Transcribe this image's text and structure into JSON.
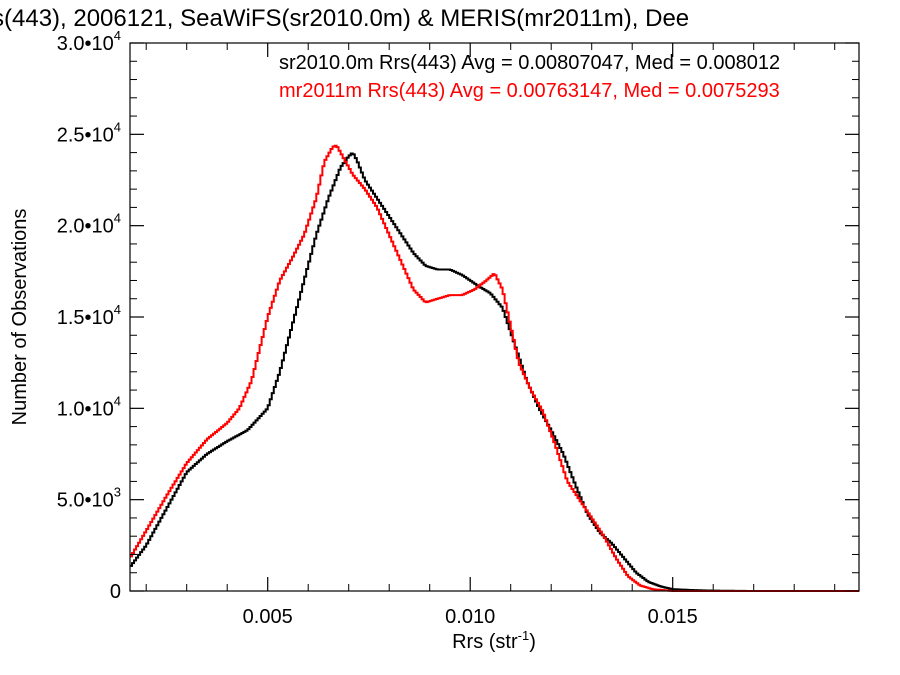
{
  "chart_data": {
    "type": "line",
    "title": "s(443), 2006121, SeaWiFS(sr2010.0m) & MERIS(mr2011m), Dee",
    "xlabel_main": "Rrs (str",
    "xlabel_sup": "-1",
    "xlabel_close": ")",
    "ylabel": "Number of Observations",
    "xlim": [
      0.0016,
      0.0196
    ],
    "ylim": [
      0,
      30000
    ],
    "grid": false,
    "legend_placement": "top-right",
    "x_ticks": [
      {
        "value": 0.005,
        "label": "0.005"
      },
      {
        "value": 0.01,
        "label": "0.010"
      },
      {
        "value": 0.015,
        "label": "0.015"
      }
    ],
    "y_ticks": [
      {
        "value": 0,
        "mant": "0",
        "exp": ""
      },
      {
        "value": 5000,
        "mant": "5.0•10",
        "exp": "3"
      },
      {
        "value": 10000,
        "mant": "1.0•10",
        "exp": "4"
      },
      {
        "value": 15000,
        "mant": "1.5•10",
        "exp": "4"
      },
      {
        "value": 20000,
        "mant": "2.0•10",
        "exp": "4"
      },
      {
        "value": 25000,
        "mant": "2.5•10",
        "exp": "4"
      },
      {
        "value": 30000,
        "mant": "3.0•10",
        "exp": "4"
      }
    ],
    "series": [
      {
        "label": "sr2010.0m Rrs(443) Avg = 0.00807047, Med = 0.008012",
        "color": "#000000",
        "x": [
          0.0016,
          0.002,
          0.0025,
          0.003,
          0.0035,
          0.004,
          0.0045,
          0.005,
          0.0053,
          0.0056,
          0.0059,
          0.0062,
          0.0065,
          0.0068,
          0.007,
          0.0071,
          0.0072,
          0.0074,
          0.0077,
          0.008,
          0.0083,
          0.0086,
          0.0089,
          0.0092,
          0.0095,
          0.0098,
          0.01,
          0.0102,
          0.0105,
          0.0108,
          0.0111,
          0.0114,
          0.0117,
          0.012,
          0.0123,
          0.0126,
          0.0129,
          0.0132,
          0.0135,
          0.0138,
          0.0141,
          0.0144,
          0.0147,
          0.015,
          0.0155,
          0.016,
          0.017,
          0.0196
        ],
        "y": [
          1300,
          2500,
          4500,
          6500,
          7500,
          8200,
          8800,
          10000,
          12000,
          14500,
          17000,
          19500,
          21500,
          23200,
          23800,
          24000,
          23600,
          22500,
          21500,
          20500,
          19500,
          18500,
          17800,
          17600,
          17600,
          17300,
          17000,
          16700,
          16300,
          15500,
          13500,
          11500,
          10000,
          8800,
          7500,
          5800,
          4200,
          3200,
          2600,
          1800,
          1000,
          500,
          250,
          100,
          50,
          20,
          0,
          0
        ]
      },
      {
        "label": "mr2011m Rrs(443) Avg = 0.00763147, Med = 0.0075293",
        "color": "#ff0000",
        "x": [
          0.0016,
          0.002,
          0.0025,
          0.003,
          0.0035,
          0.004,
          0.0043,
          0.0046,
          0.005,
          0.0053,
          0.0056,
          0.0059,
          0.0062,
          0.0064,
          0.0066,
          0.0067,
          0.0068,
          0.0069,
          0.0071,
          0.0074,
          0.0077,
          0.008,
          0.0083,
          0.0086,
          0.0089,
          0.0092,
          0.0095,
          0.0098,
          0.0101,
          0.0104,
          0.0106,
          0.0108,
          0.011,
          0.0112,
          0.0115,
          0.0118,
          0.0121,
          0.0124,
          0.0127,
          0.013,
          0.0133,
          0.0136,
          0.0139,
          0.0142,
          0.0145,
          0.015,
          0.0196
        ],
        "y": [
          1800,
          3300,
          5200,
          7000,
          8300,
          9200,
          10000,
          11500,
          15000,
          17000,
          18200,
          19500,
          21500,
          23500,
          24300,
          24400,
          24000,
          23600,
          22800,
          22000,
          21000,
          19500,
          18000,
          16500,
          15800,
          16000,
          16200,
          16200,
          16500,
          17000,
          17400,
          16500,
          14500,
          12500,
          11000,
          9800,
          8000,
          6000,
          5000,
          4000,
          3000,
          1800,
          800,
          300,
          100,
          0,
          0
        ]
      }
    ]
  }
}
